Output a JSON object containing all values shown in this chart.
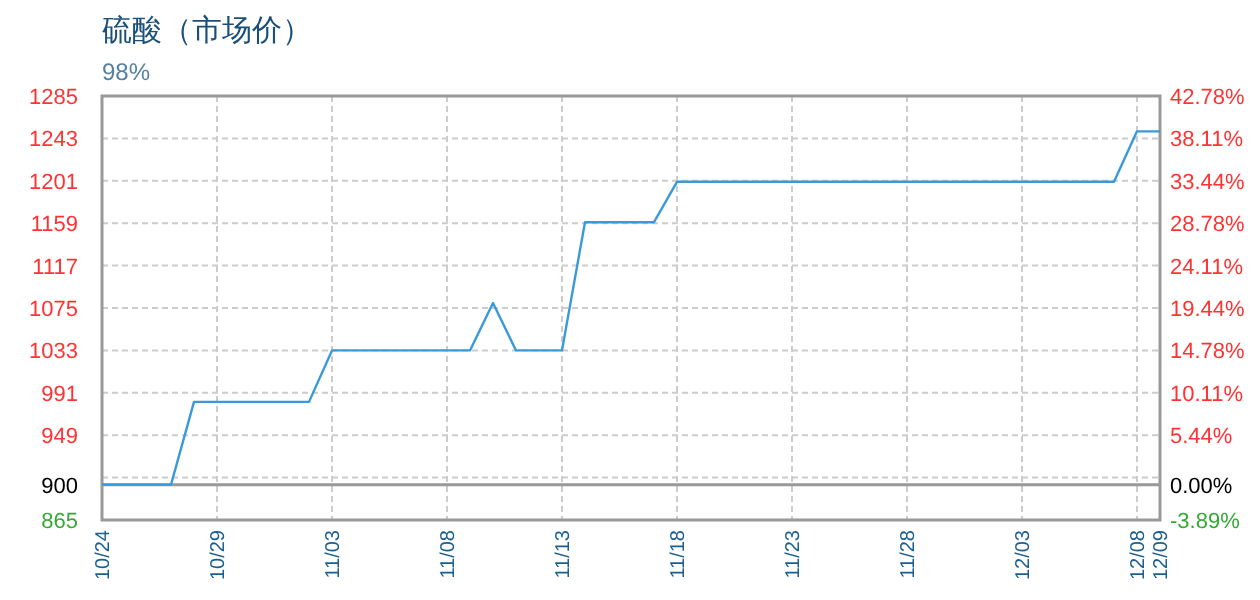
{
  "chart_data": {
    "type": "line",
    "title": "硫酸（市场价）",
    "subtitle": "98%",
    "x": [
      "--10-24",
      "--10-27",
      "--10-28",
      "--11-02",
      "--11-03",
      "--11-09",
      "--11-10",
      "--11-11",
      "--11-13",
      "--11-14",
      "--11-17",
      "--11-18",
      "--12-07",
      "--12-08",
      "--12-09"
    ],
    "series": [
      {
        "color": "#3a9ad9",
        "values": [
          900,
          900,
          982,
          982,
          1033,
          1033,
          1080,
          1033,
          1033,
          1160,
          1160,
          1200,
          1200,
          1250,
          1250
        ]
      }
    ],
    "xlim": [
      "--10-24",
      "--12-09"
    ],
    "xticks": [
      {
        "value": "--10-24",
        "label": "10/24"
      },
      {
        "value": "--10-29",
        "label": "10/29"
      },
      {
        "value": "--11-03",
        "label": "11/03"
      },
      {
        "value": "--11-08",
        "label": "11/08"
      },
      {
        "value": "--11-13",
        "label": "11/13"
      },
      {
        "value": "--11-18",
        "label": "11/18"
      },
      {
        "value": "--11-23",
        "label": "11/23"
      },
      {
        "value": "--11-28",
        "label": "11/28"
      },
      {
        "value": "--12-03",
        "label": "12/03"
      },
      {
        "value": "--12-08",
        "label": "12/08"
      },
      {
        "value": "--12-09",
        "label": "12/09"
      }
    ],
    "ylim": [
      865,
      1285
    ],
    "yticks": [
      865,
      900,
      {
        "value": 907,
        "label": null
      },
      949,
      991,
      1033,
      1075,
      1117,
      1159,
      1201,
      1243,
      1285
    ],
    "y2lim": [
      -3.89,
      42.78
    ],
    "y2ticks": [
      {
        "value": -3.89,
        "label": "-3.89%"
      },
      {
        "value": 0,
        "label": "0.00%"
      },
      {
        "value": 5.44,
        "label": "5.44%"
      },
      {
        "value": 10.11,
        "label": "10.11%"
      },
      {
        "value": 14.78,
        "label": "14.78%"
      },
      {
        "value": 19.44,
        "label": "19.44%"
      },
      {
        "value": 24.11,
        "label": "24.11%"
      },
      {
        "value": 28.78,
        "label": "28.78%"
      },
      {
        "value": 33.44,
        "label": "33.44%"
      },
      {
        "value": 38.11,
        "label": "38.11%"
      },
      {
        "value": 42.78,
        "label": "42.78%"
      }
    ],
    "ref_lines": [
      {
        "axis": "y",
        "value": 900,
        "color": "#999999"
      }
    ],
    "grid": true
  }
}
